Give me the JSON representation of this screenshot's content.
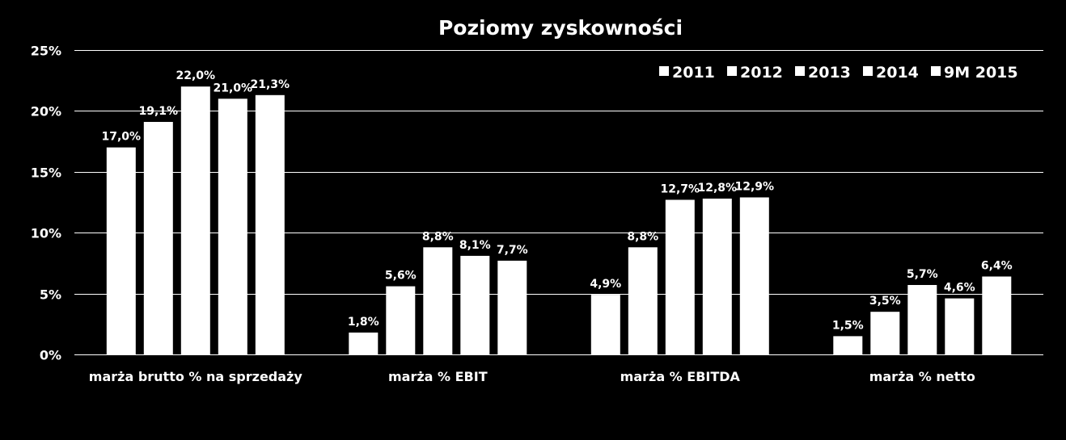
{
  "chart_data": {
    "type": "bar",
    "title": "Poziomy zyskowności",
    "xlabel": "",
    "ylabel": "",
    "ylim": [
      0,
      25
    ],
    "y_ticks": [
      "0%",
      "5%",
      "10%",
      "15%",
      "20%",
      "25%"
    ],
    "grid": true,
    "legend_position": "top-right",
    "categories": [
      "marża brutto % na sprzedaży",
      "marża % EBIT",
      "marża % EBITDA",
      "marża % netto"
    ],
    "series": [
      {
        "name": "2011",
        "values": [
          17.0,
          1.8,
          4.9,
          1.5
        ],
        "labels": [
          "17,0%",
          "1,8%",
          "4,9%",
          "1,5%"
        ]
      },
      {
        "name": "2012",
        "values": [
          19.1,
          5.6,
          8.8,
          3.5
        ],
        "labels": [
          "19,1%",
          "5,6%",
          "8,8%",
          "3,5%"
        ]
      },
      {
        "name": "2013",
        "values": [
          22.0,
          8.8,
          12.7,
          5.7
        ],
        "labels": [
          "22,0%",
          "8,8%",
          "12,7%",
          "5,7%"
        ]
      },
      {
        "name": "2014",
        "values": [
          21.0,
          8.1,
          12.8,
          4.6
        ],
        "labels": [
          "21,0%",
          "8,1%",
          "12,8%",
          "4,6%"
        ]
      },
      {
        "name": "9M 2015",
        "values": [
          21.3,
          7.7,
          12.9,
          6.4
        ],
        "labels": [
          "21,3%",
          "7,7%",
          "12,9%",
          "6,4%"
        ]
      }
    ],
    "colors": {
      "background": "#000000",
      "bar": "#ffffff",
      "grid": "#ffffff",
      "text": "#ffffff"
    }
  }
}
